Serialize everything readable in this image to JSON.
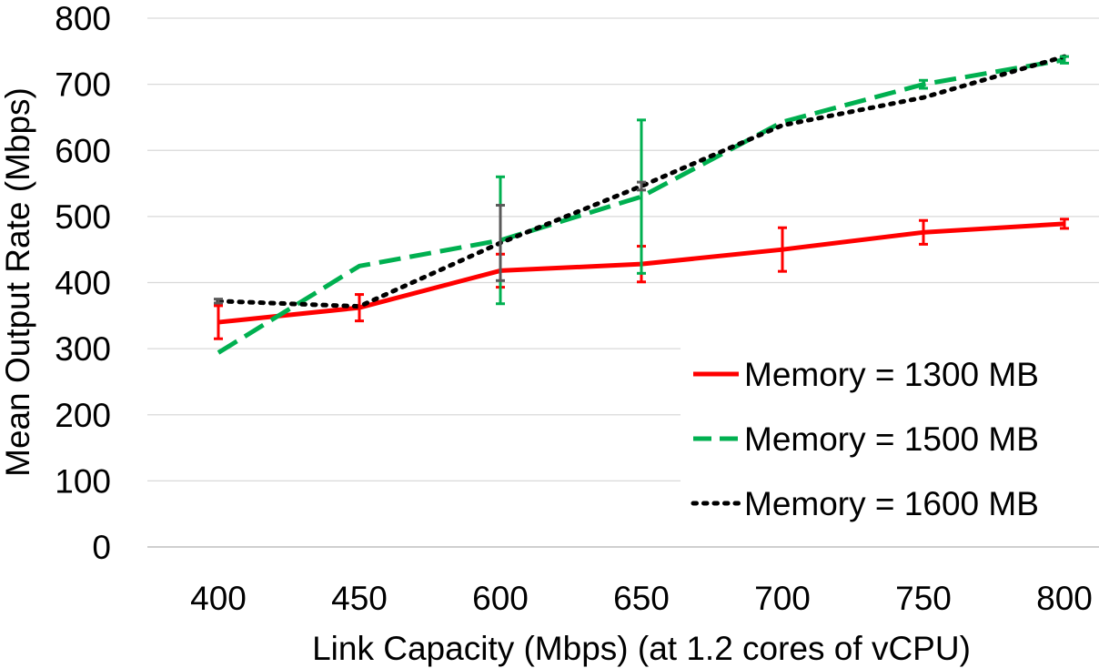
{
  "chart_data": {
    "type": "line",
    "title": "",
    "xlabel": "Link Capacity (Mbps) (at 1.2 cores of vCPU)",
    "ylabel": "Mean Output Rate (Mbps)",
    "categories": [
      "400",
      "450",
      "600",
      "650",
      "700",
      "750",
      "800"
    ],
    "yticks": [
      "0",
      "100",
      "200",
      "300",
      "400",
      "500",
      "600",
      "700",
      "800"
    ],
    "ylim": [
      0,
      800
    ],
    "grid": "horizontal",
    "legend_position": "bottom-right",
    "series": [
      {
        "name": "Memory = 1300 MB",
        "color": "#ff0000",
        "style": "solid",
        "values": [
          340,
          362,
          418,
          428,
          450,
          476,
          489
        ],
        "errors": [
          25,
          20,
          25,
          27,
          33,
          18,
          7
        ]
      },
      {
        "name": "Memory = 1500 MB",
        "color": "#00b050",
        "style": "dashed",
        "values": [
          294,
          425,
          464,
          530,
          643,
          700,
          737
        ],
        "errors": [
          0,
          0,
          96,
          116,
          0,
          6,
          5
        ]
      },
      {
        "name": "Memory = 1600 MB",
        "color": "#000000",
        "style": "dotted",
        "values": [
          372,
          364,
          460,
          546,
          638,
          680,
          742
        ],
        "errors": [
          3,
          0,
          57,
          6,
          0,
          0,
          0
        ]
      }
    ]
  }
}
